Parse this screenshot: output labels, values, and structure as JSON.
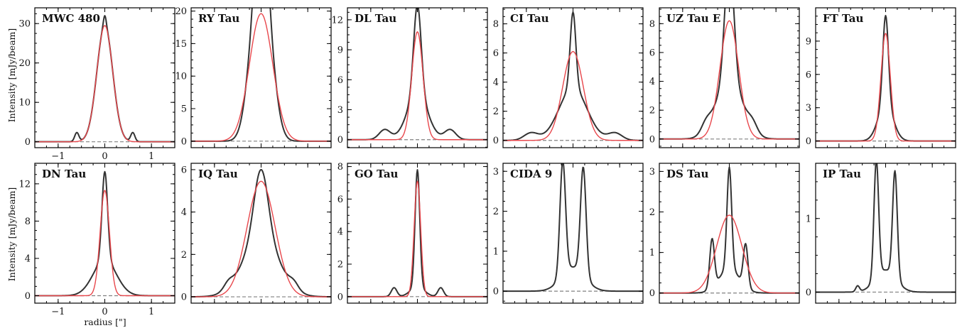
{
  "figure": {
    "ylabel": "Intensity [mJy/beam]",
    "xlabel": "radius [\"]"
  },
  "colors": {
    "data": "#333333",
    "model": "#e8474c",
    "zero_line": "#808080"
  },
  "chart_data": [
    {
      "type": "line",
      "title": "MWC 480",
      "xlim": [
        -1.5,
        1.5
      ],
      "ylim": [
        -1.5,
        34
      ],
      "yticks": [
        0,
        10,
        20,
        30
      ],
      "xticks": [
        -1,
        0,
        1
      ],
      "series": [
        {
          "kind": "gaussian_sum",
          "components": [
            {
              "amp": 29.5,
              "center": 0,
              "sigma": 0.17
            },
            {
              "amp": 2.5,
              "center": 0,
              "sigma": 0.03
            },
            {
              "amp": 2.3,
              "center": -0.6,
              "sigma": 0.045
            },
            {
              "amp": 2.3,
              "center": 0.6,
              "sigma": 0.045
            }
          ]
        },
        {
          "kind": "gaussian_sum",
          "components": [
            {
              "amp": 29.5,
              "center": 0,
              "sigma": 0.17
            }
          ]
        }
      ]
    },
    {
      "type": "line",
      "title": "RY Tau",
      "xlim": [
        -1.5,
        1.5
      ],
      "ylim": [
        -1,
        20.5
      ],
      "yticks": [
        0,
        5,
        10,
        15,
        20
      ],
      "xticks": [
        -1,
        0,
        1
      ],
      "series": [
        {
          "kind": "gaussian_sum",
          "components": [
            {
              "amp": 16.5,
              "center": -0.1,
              "sigma": 0.18
            },
            {
              "amp": 16.5,
              "center": 0.1,
              "sigma": 0.18
            },
            {
              "amp": 2.5,
              "center": -0.15,
              "sigma": 0.05
            },
            {
              "amp": 3.0,
              "center": 0.15,
              "sigma": 0.05
            }
          ]
        },
        {
          "kind": "gaussian_sum",
          "components": [
            {
              "amp": 19.6,
              "center": 0,
              "sigma": 0.25
            }
          ]
        }
      ]
    },
    {
      "type": "line",
      "title": "DL Tau",
      "xlim": [
        -1.5,
        1.5
      ],
      "ylim": [
        -0.8,
        13.2
      ],
      "yticks": [
        0,
        3,
        6,
        9,
        12
      ],
      "xticks": [
        -1,
        0,
        1
      ],
      "series": [
        {
          "kind": "gaussian_sum",
          "components": [
            {
              "amp": 9.0,
              "center": 0,
              "sigma": 0.08
            },
            {
              "amp": 4.5,
              "center": 0,
              "sigma": 0.22
            },
            {
              "amp": 1.0,
              "center": -0.7,
              "sigma": 0.12
            },
            {
              "amp": 1.0,
              "center": 0.7,
              "sigma": 0.12
            }
          ]
        },
        {
          "kind": "gaussian_sum",
          "components": [
            {
              "amp": 10.8,
              "center": 0,
              "sigma": 0.12
            }
          ]
        }
      ]
    },
    {
      "type": "line",
      "title": "CI Tau",
      "xlim": [
        -1.5,
        1.5
      ],
      "ylim": [
        -0.5,
        9.1
      ],
      "yticks": [
        0,
        2,
        4,
        6,
        8
      ],
      "xticks": [
        -1,
        0,
        1
      ],
      "series": [
        {
          "kind": "gaussian_sum",
          "components": [
            {
              "amp": 5.2,
              "center": 0,
              "sigma": 0.06
            },
            {
              "amp": 3.6,
              "center": 0,
              "sigma": 0.3
            },
            {
              "amp": 0.5,
              "center": -0.9,
              "sigma": 0.15
            },
            {
              "amp": 0.5,
              "center": 0.9,
              "sigma": 0.15
            }
          ]
        },
        {
          "kind": "gaussian_sum",
          "components": [
            {
              "amp": 6.1,
              "center": 0,
              "sigma": 0.22
            }
          ]
        }
      ]
    },
    {
      "type": "line",
      "title": "UZ Tau E",
      "xlim": [
        -1.5,
        1.5
      ],
      "ylim": [
        -0.6,
        9.1
      ],
      "yticks": [
        0,
        2,
        4,
        6,
        8
      ],
      "xticks": [
        -1,
        0,
        1
      ],
      "series": [
        {
          "kind": "gaussian_sum",
          "components": [
            {
              "amp": 4.8,
              "center": -0.05,
              "sigma": 0.08
            },
            {
              "amp": 4.8,
              "center": 0.05,
              "sigma": 0.08
            },
            {
              "amp": 4.2,
              "center": 0,
              "sigma": 0.28
            },
            {
              "amp": 0.6,
              "center": -0.5,
              "sigma": 0.1
            },
            {
              "amp": 0.6,
              "center": 0.5,
              "sigma": 0.1
            }
          ]
        },
        {
          "kind": "gaussian_sum",
          "components": [
            {
              "amp": 8.2,
              "center": 0,
              "sigma": 0.2
            }
          ]
        }
      ]
    },
    {
      "type": "line",
      "title": "FT Tau",
      "xlim": [
        -1.5,
        1.5
      ],
      "ylim": [
        -0.6,
        12
      ],
      "yticks": [
        0,
        3,
        6,
        9
      ],
      "xticks": [
        -1,
        0,
        1
      ],
      "series": [
        {
          "kind": "gaussian_sum",
          "components": [
            {
              "amp": 8.0,
              "center": 0,
              "sigma": 0.06
            },
            {
              "amp": 3.3,
              "center": 0,
              "sigma": 0.16
            }
          ]
        },
        {
          "kind": "gaussian_sum",
          "components": [
            {
              "amp": 9.7,
              "center": 0,
              "sigma": 0.1
            }
          ]
        }
      ]
    },
    {
      "type": "line",
      "title": "DN Tau",
      "xlim": [
        -1.5,
        1.5
      ],
      "ylim": [
        -0.8,
        14.2
      ],
      "yticks": [
        0,
        4,
        8,
        12
      ],
      "xticks": [
        -1,
        0,
        1
      ],
      "series": [
        {
          "kind": "gaussian_sum",
          "components": [
            {
              "amp": 9.5,
              "center": 0,
              "sigma": 0.06
            },
            {
              "amp": 3.8,
              "center": 0,
              "sigma": 0.25
            }
          ]
        },
        {
          "kind": "gaussian_sum",
          "components": [
            {
              "amp": 11.3,
              "center": 0,
              "sigma": 0.1
            }
          ]
        }
      ]
    },
    {
      "type": "line",
      "title": "IQ Tau",
      "xlim": [
        -1.5,
        1.5
      ],
      "ylim": [
        -0.3,
        6.3
      ],
      "yticks": [
        0,
        2,
        4,
        6
      ],
      "xticks": [
        -1,
        0,
        1
      ],
      "series": [
        {
          "kind": "gaussian_sum",
          "components": [
            {
              "amp": 3.2,
              "center": 0,
              "sigma": 0.15
            },
            {
              "amp": 2.8,
              "center": 0,
              "sigma": 0.38
            },
            {
              "amp": 0.3,
              "center": -0.7,
              "sigma": 0.1
            },
            {
              "amp": 0.3,
              "center": 0.7,
              "sigma": 0.1
            }
          ]
        },
        {
          "kind": "gaussian_sum",
          "components": [
            {
              "amp": 5.45,
              "center": 0,
              "sigma": 0.3
            }
          ]
        }
      ]
    },
    {
      "type": "line",
      "title": "GO Tau",
      "xlim": [
        -1.5,
        1.5
      ],
      "ylim": [
        -0.4,
        8.2
      ],
      "yticks": [
        0,
        2,
        4,
        6,
        8
      ],
      "xticks": [
        -1,
        0,
        1
      ],
      "series": [
        {
          "kind": "gaussian_sum",
          "components": [
            {
              "amp": 7.2,
              "center": 0,
              "sigma": 0.05
            },
            {
              "amp": 0.6,
              "center": 0,
              "sigma": 0.15
            },
            {
              "amp": 0.55,
              "center": -0.5,
              "sigma": 0.06
            },
            {
              "amp": 0.55,
              "center": 0.5,
              "sigma": 0.06
            }
          ]
        },
        {
          "kind": "gaussian_sum",
          "components": [
            {
              "amp": 7.1,
              "center": 0,
              "sigma": 0.07
            }
          ]
        }
      ]
    },
    {
      "type": "line",
      "title": "CIDA 9",
      "xlim": [
        -1.5,
        1.5
      ],
      "ylim": [
        -0.3,
        3.2
      ],
      "yticks": [
        0,
        1,
        2,
        3
      ],
      "xticks": [
        -1,
        0,
        1
      ],
      "series": [
        {
          "kind": "gaussian_sum",
          "components": [
            {
              "amp": 2.85,
              "center": -0.22,
              "sigma": 0.06
            },
            {
              "amp": 2.7,
              "center": 0.22,
              "sigma": 0.06
            },
            {
              "amp": 0.6,
              "center": 0,
              "sigma": 0.25
            }
          ]
        }
      ]
    },
    {
      "type": "line",
      "title": "DS Tau",
      "xlim": [
        -1.5,
        1.5
      ],
      "ylim": [
        -0.25,
        3.2
      ],
      "yticks": [
        0,
        1,
        2,
        3
      ],
      "xticks": [
        -1,
        0,
        1
      ],
      "series": [
        {
          "kind": "gaussian_sum",
          "components": [
            {
              "amp": 1.2,
              "center": -0.37,
              "sigma": 0.05
            },
            {
              "amp": 2.5,
              "center": 0,
              "sigma": 0.05
            },
            {
              "amp": 1.05,
              "center": 0.35,
              "sigma": 0.05
            },
            {
              "amp": 0.6,
              "center": 0,
              "sigma": 0.22
            }
          ]
        },
        {
          "kind": "gaussian_sum",
          "components": [
            {
              "amp": 1.92,
              "center": 0,
              "sigma": 0.27
            }
          ]
        }
      ]
    },
    {
      "type": "line",
      "title": "IP Tau",
      "xlim": [
        -1.5,
        1.5
      ],
      "ylim": [
        -0.15,
        1.75
      ],
      "yticks": [
        0,
        1
      ],
      "xticks": [
        -1,
        0,
        1
      ],
      "series": [
        {
          "kind": "gaussian_sum",
          "components": [
            {
              "amp": 1.6,
              "center": -0.2,
              "sigma": 0.05
            },
            {
              "amp": 1.45,
              "center": 0.2,
              "sigma": 0.05
            },
            {
              "amp": 0.3,
              "center": 0,
              "sigma": 0.22
            },
            {
              "amp": 0.08,
              "center": -0.6,
              "sigma": 0.04
            }
          ]
        }
      ]
    }
  ]
}
